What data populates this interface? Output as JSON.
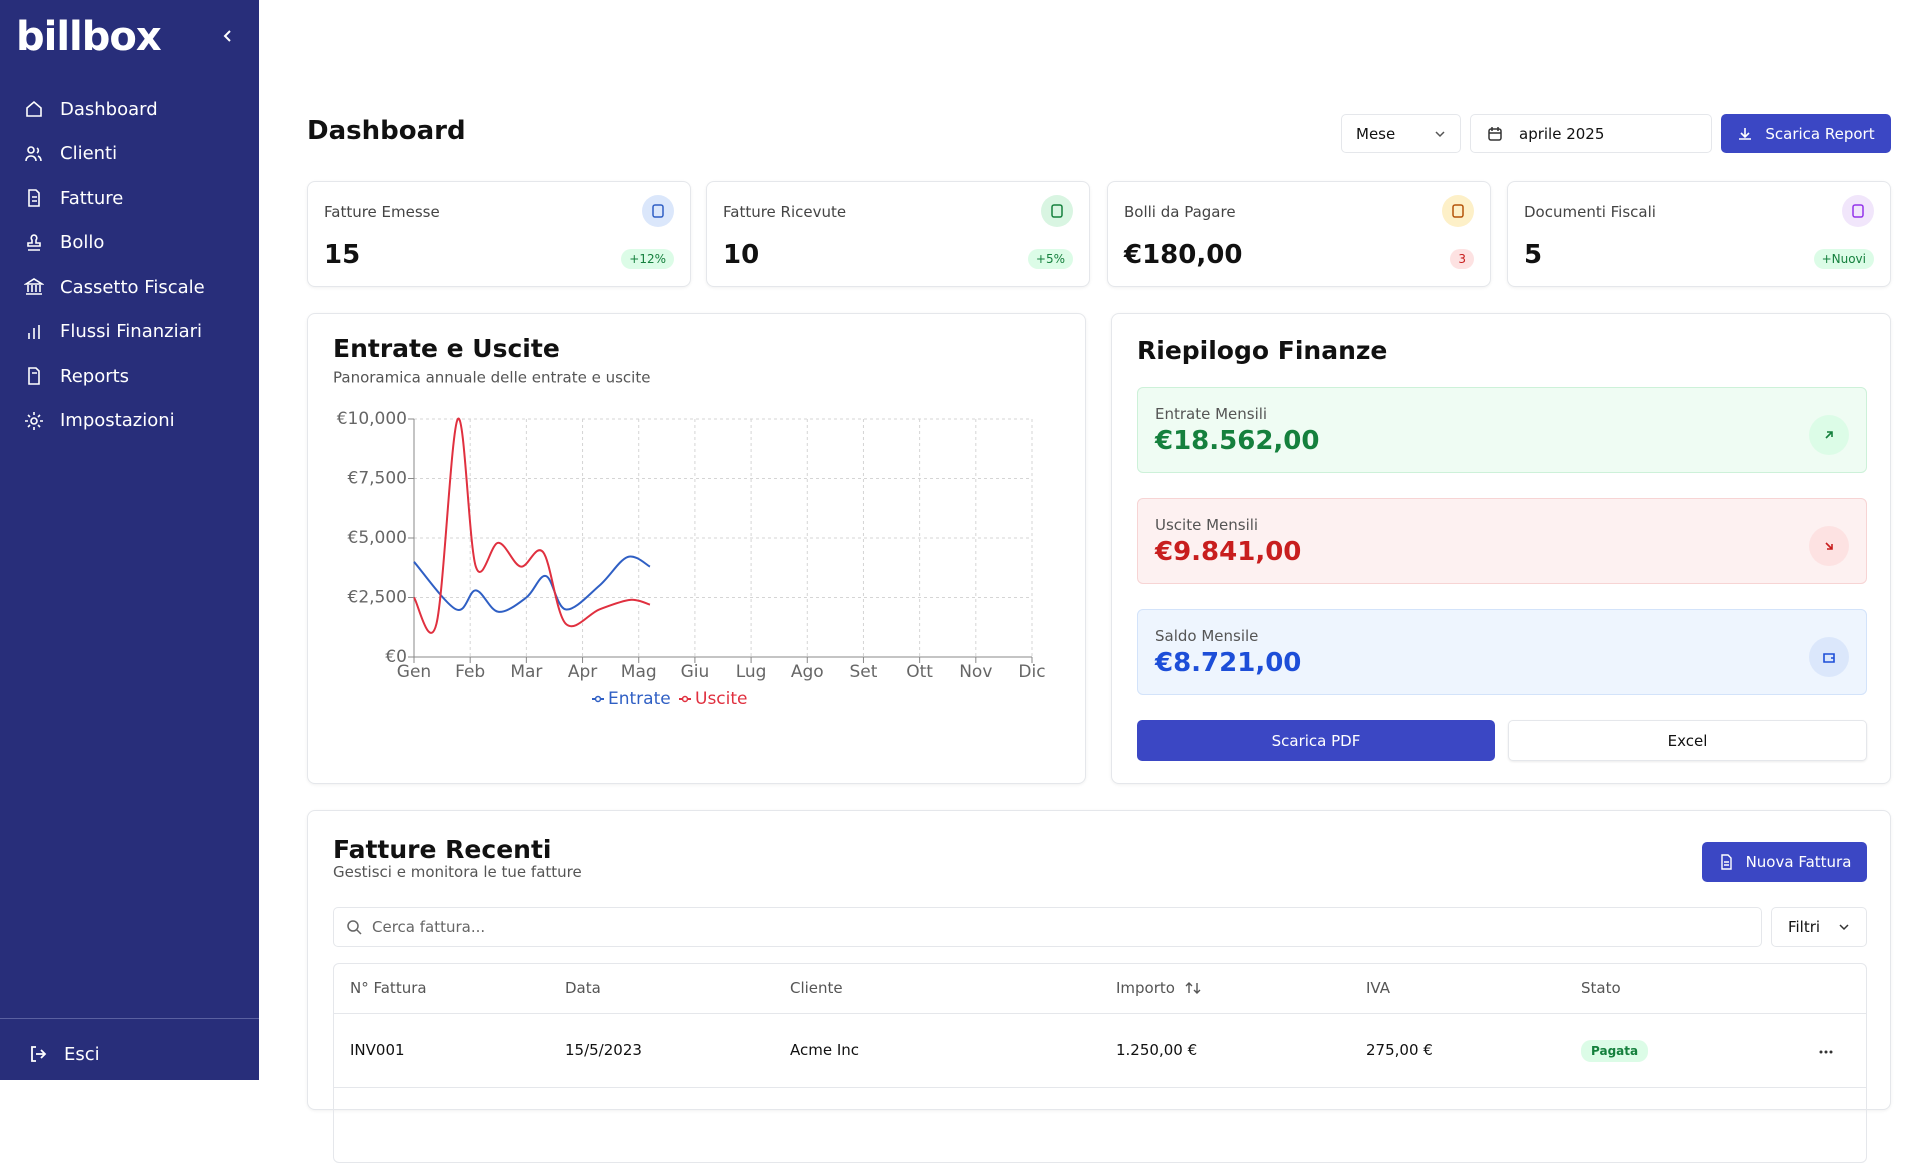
{
  "sidebar": {
    "logo": "billbox",
    "nav": [
      "Dashboard",
      "Clienti",
      "Fatture",
      "Bollo",
      "Cassetto Fiscale",
      "Flussi Finanziari",
      "Reports",
      "Impostazioni"
    ],
    "logout": "Esci"
  },
  "header": {
    "title": "Dashboard",
    "period": "Mese",
    "date": "aprile 2025",
    "download": "Scarica Report"
  },
  "stats": [
    {
      "label": "Fatture Emesse",
      "value": "15",
      "badge": "+12%"
    },
    {
      "label": "Fatture Ricevute",
      "value": "10",
      "badge": "+5%"
    },
    {
      "label": "Bolli da Pagare",
      "value": "€180,00",
      "badge": "3"
    },
    {
      "label": "Documenti Fiscali",
      "value": "5",
      "badge": "+Nuovi"
    }
  ],
  "chart_data": {
    "type": "line",
    "title": "Entrate e Uscite",
    "subtitle": "Panoramica annuale delle entrate e uscite",
    "xlim": [
      0,
      11
    ],
    "xticks": [
      {
        "value": 0,
        "label": "Gen"
      },
      {
        "value": 1,
        "label": "Feb"
      },
      {
        "value": 2,
        "label": "Mar"
      },
      {
        "value": 3,
        "label": "Apr"
      },
      {
        "value": 4,
        "label": "Mag"
      },
      {
        "value": 5,
        "label": "Giu"
      },
      {
        "value": 6,
        "label": "Lug"
      },
      {
        "value": 7,
        "label": "Ago"
      },
      {
        "value": 8,
        "label": "Set"
      },
      {
        "value": 9,
        "label": "Ott"
      },
      {
        "value": 10,
        "label": "Nov"
      },
      {
        "value": 11,
        "label": "Dic"
      }
    ],
    "ylim": [
      0,
      10000
    ],
    "yticks": [
      {
        "value": 0,
        "label": "€0"
      },
      {
        "value": 2500,
        "label": "€2,500"
      },
      {
        "value": 5000,
        "label": "€5,000"
      },
      {
        "value": 7500,
        "label": "€7,500"
      },
      {
        "value": 10000,
        "label": "€10,000"
      }
    ],
    "grid": true,
    "series": [
      {
        "name": "Entrate",
        "color": "#2f5fc4",
        "x": [
          0,
          0.75,
          1.1,
          1.5,
          2.0,
          2.35,
          2.7,
          3.3,
          3.8,
          4.2
        ],
        "values": [
          4000,
          2000,
          2800,
          1900,
          2500,
          3400,
          2000,
          3000,
          4200,
          3800
        ]
      },
      {
        "name": "Uscite",
        "color": "#e0303f",
        "x": [
          0,
          0.4,
          0.78,
          1.1,
          1.5,
          1.9,
          2.3,
          2.7,
          3.3,
          3.85,
          4.2
        ],
        "values": [
          2500,
          1400,
          10000,
          3800,
          4800,
          3800,
          4400,
          1400,
          2000,
          2400,
          2200
        ]
      }
    ]
  },
  "summary": {
    "title": "Riepilogo Finanze",
    "items": [
      {
        "label": "Entrate Mensili",
        "value": "€18.562,00"
      },
      {
        "label": "Uscite Mensili",
        "value": "€9.841,00"
      },
      {
        "label": "Saldo Mensile",
        "value": "€8.721,00"
      }
    ],
    "pdf": "Scarica PDF",
    "excel": "Excel"
  },
  "invoices": {
    "title": "Fatture Recenti",
    "subtitle": "Gestisci e monitora le tue fatture",
    "new": "Nuova Fattura",
    "search": "Cerca fattura...",
    "filter": "Filtri",
    "columns": [
      "N° Fattura",
      "Data",
      "Cliente",
      "Importo",
      "IVA",
      "Stato"
    ],
    "rows": [
      [
        "INV001",
        "15/5/2023",
        "Acme Inc",
        "1.250,00 €",
        "275,00 €",
        "Pagata"
      ]
    ]
  }
}
